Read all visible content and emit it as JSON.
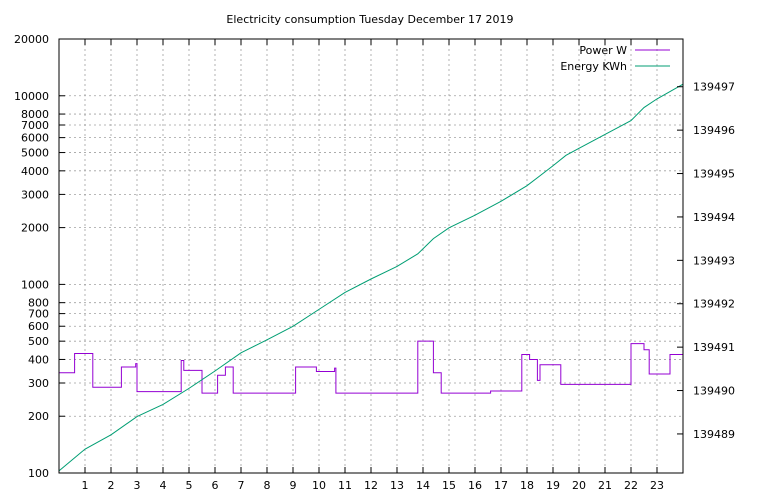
{
  "chart_data": {
    "type": "line",
    "title": "Electricity consumption Tuesday December 17 2019",
    "grid": true,
    "legend_position": "top-right",
    "x": {
      "range": [
        0,
        24
      ],
      "ticks": [
        1,
        2,
        3,
        4,
        5,
        6,
        7,
        8,
        9,
        10,
        11,
        12,
        13,
        14,
        15,
        16,
        17,
        18,
        19,
        20,
        21,
        22,
        23
      ]
    },
    "y_left": {
      "scale": "log",
      "range": [
        100,
        20000
      ],
      "ticks": [
        100,
        200,
        300,
        400,
        500,
        600,
        700,
        800,
        1000,
        2000,
        3000,
        4000,
        5000,
        6000,
        7000,
        8000,
        10000,
        20000
      ]
    },
    "y_right": {
      "scale": "linear",
      "range": [
        139488.1,
        139498.1
      ],
      "ticks": [
        139489,
        139490,
        139491,
        139492,
        139493,
        139494,
        139495,
        139496,
        139497
      ]
    },
    "series": [
      {
        "name": "Power W",
        "axis": "left",
        "color": "#9400d3",
        "step": true,
        "points": [
          [
            0,
            340
          ],
          [
            0.6,
            340
          ],
          [
            0.6,
            430
          ],
          [
            1.3,
            430
          ],
          [
            1.3,
            285
          ],
          [
            2.4,
            285
          ],
          [
            2.4,
            365
          ],
          [
            2.95,
            365
          ],
          [
            2.95,
            380
          ],
          [
            3.0,
            380
          ],
          [
            3.0,
            270
          ],
          [
            4.7,
            270
          ],
          [
            4.7,
            395
          ],
          [
            4.8,
            395
          ],
          [
            4.8,
            350
          ],
          [
            5.5,
            350
          ],
          [
            5.5,
            265
          ],
          [
            6.1,
            265
          ],
          [
            6.1,
            330
          ],
          [
            6.4,
            330
          ],
          [
            6.4,
            365
          ],
          [
            6.7,
            365
          ],
          [
            6.7,
            265
          ],
          [
            9.1,
            265
          ],
          [
            9.1,
            365
          ],
          [
            9.9,
            365
          ],
          [
            9.9,
            345
          ],
          [
            10.6,
            345
          ],
          [
            10.6,
            360
          ],
          [
            10.65,
            360
          ],
          [
            10.65,
            265
          ],
          [
            13.8,
            265
          ],
          [
            13.8,
            500
          ],
          [
            14.4,
            500
          ],
          [
            14.4,
            340
          ],
          [
            14.7,
            340
          ],
          [
            14.7,
            265
          ],
          [
            16.6,
            265
          ],
          [
            16.6,
            272
          ],
          [
            17.8,
            272
          ],
          [
            17.8,
            425
          ],
          [
            18.1,
            425
          ],
          [
            18.1,
            400
          ],
          [
            18.4,
            400
          ],
          [
            18.4,
            310
          ],
          [
            18.5,
            310
          ],
          [
            18.5,
            375
          ],
          [
            19.3,
            375
          ],
          [
            19.3,
            295
          ],
          [
            22.0,
            295
          ],
          [
            22.0,
            485
          ],
          [
            22.5,
            485
          ],
          [
            22.5,
            450
          ],
          [
            22.7,
            450
          ],
          [
            22.7,
            335
          ],
          [
            23.5,
            335
          ],
          [
            23.5,
            425
          ],
          [
            24,
            425
          ]
        ]
      },
      {
        "name": "Energy KWh",
        "axis": "right",
        "color": "#009e73",
        "step": false,
        "points": [
          [
            0,
            139488.15
          ],
          [
            0.5,
            139488.4
          ],
          [
            1,
            139488.65
          ],
          [
            2,
            139488.98
          ],
          [
            3,
            139489.4
          ],
          [
            4,
            139489.68
          ],
          [
            5,
            139490.05
          ],
          [
            6,
            139490.45
          ],
          [
            7,
            139490.87
          ],
          [
            8,
            139491.17
          ],
          [
            9,
            139491.48
          ],
          [
            10,
            139491.87
          ],
          [
            11,
            139492.26
          ],
          [
            12,
            139492.57
          ],
          [
            13,
            139492.86
          ],
          [
            13.8,
            139493.15
          ],
          [
            14.4,
            139493.5
          ],
          [
            15,
            139493.75
          ],
          [
            16,
            139494.04
          ],
          [
            17,
            139494.36
          ],
          [
            18,
            139494.72
          ],
          [
            18.5,
            139494.95
          ],
          [
            19,
            139495.18
          ],
          [
            19.5,
            139495.42
          ],
          [
            20,
            139495.58
          ],
          [
            21,
            139495.9
          ],
          [
            22,
            139496.22
          ],
          [
            22.5,
            139496.52
          ],
          [
            23,
            139496.72
          ],
          [
            24,
            139497.06
          ]
        ]
      }
    ]
  }
}
